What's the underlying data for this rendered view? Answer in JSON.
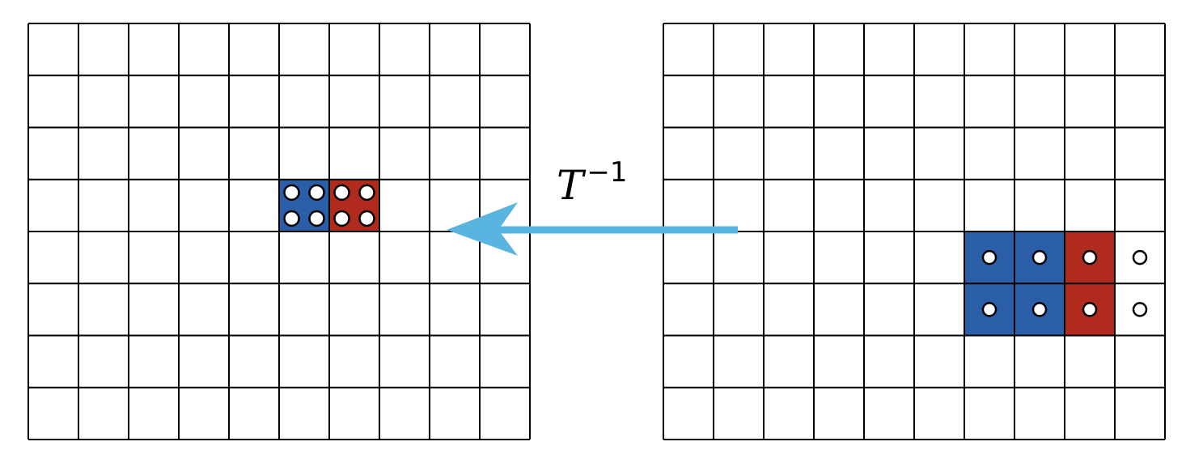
{
  "diagram": {
    "transform_label": {
      "base": "T",
      "superscript": "−1"
    },
    "colors": {
      "grid_line": "#000000",
      "blue_block": "#2a5fa7",
      "red_block": "#b02a1e",
      "arrow": "#5ab4e0",
      "dot_fill": "#ffffff",
      "dot_stroke": "#000000"
    },
    "left_grid": {
      "columns": 10,
      "rows": 8,
      "blue_cells": [
        [
          5,
          3
        ]
      ],
      "red_cells": [
        [
          6,
          3
        ]
      ],
      "dots_per_cell_axis": 2,
      "dot_cells": [
        [
          5,
          3
        ],
        [
          6,
          3
        ]
      ]
    },
    "right_grid": {
      "columns": 10,
      "rows": 8,
      "blue_cells": [
        [
          6,
          4
        ],
        [
          7,
          4
        ],
        [
          6,
          5
        ],
        [
          7,
          5
        ]
      ],
      "red_cells": [
        [
          8,
          4
        ],
        [
          8,
          5
        ]
      ],
      "dots_per_cell_axis": 1,
      "dot_cells": [
        [
          6,
          4
        ],
        [
          7,
          4
        ],
        [
          8,
          4
        ],
        [
          9,
          4
        ],
        [
          6,
          5
        ],
        [
          7,
          5
        ],
        [
          8,
          5
        ],
        [
          9,
          5
        ]
      ]
    },
    "arrow_direction": "right-to-left"
  }
}
